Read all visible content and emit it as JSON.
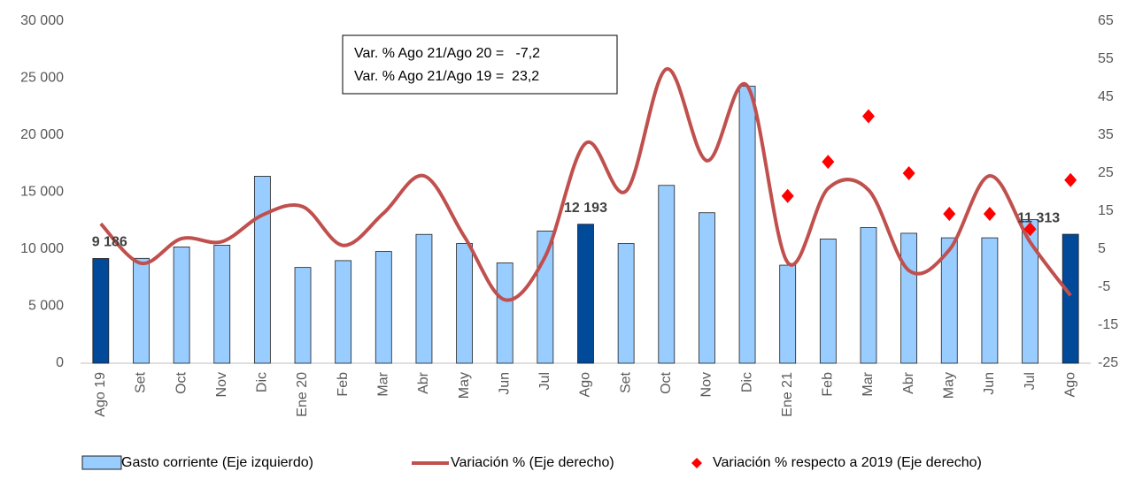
{
  "chart_data": {
    "type": "bar",
    "categories": [
      "Ago 19",
      "Set",
      "Oct",
      "Nov",
      "Dic",
      "Ene 20",
      "Feb",
      "Mar",
      "Abr",
      "May",
      "Jun",
      "Jul",
      "Ago",
      "Set",
      "Oct",
      "Nov",
      "Dic",
      "Ene 21",
      "Feb",
      "Mar",
      "Abr",
      "May",
      "Jun",
      "Jul",
      "Ago"
    ],
    "series": [
      {
        "name": "Gasto corriente (Eje izquierdo)",
        "type": "bar",
        "color": "#99ccff",
        "colors": [
          "#004a99",
          "#99ccff",
          "#99ccff",
          "#99ccff",
          "#99ccff",
          "#99ccff",
          "#99ccff",
          "#99ccff",
          "#99ccff",
          "#99ccff",
          "#99ccff",
          "#99ccff",
          "#004a99",
          "#99ccff",
          "#99ccff",
          "#99ccff",
          "#99ccff",
          "#99ccff",
          "#99ccff",
          "#99ccff",
          "#99ccff",
          "#99ccff",
          "#99ccff",
          "#99ccff",
          "#004a99"
        ],
        "values": [
          9186,
          9200,
          10200,
          10350,
          16400,
          8400,
          9000,
          9800,
          11300,
          10500,
          8800,
          11600,
          12193,
          10500,
          15600,
          13200,
          24300,
          8600,
          10900,
          11900,
          11400,
          11000,
          11000,
          12600,
          11313
        ],
        "value_labels": [
          "9 186",
          null,
          null,
          null,
          null,
          null,
          null,
          null,
          null,
          null,
          null,
          null,
          "12 193",
          null,
          null,
          null,
          null,
          null,
          null,
          null,
          null,
          null,
          null,
          null,
          "11 313"
        ]
      },
      {
        "name": "Variación % (Eje derecho)",
        "type": "line",
        "axis": "y2",
        "color": "#c0504d",
        "values": [
          11.7,
          1.3,
          7.8,
          7,
          14,
          16.2,
          6,
          14.5,
          24.3,
          8.3,
          -8.3,
          3.1,
          32.9,
          20.3,
          52.4,
          28.3,
          48,
          1.5,
          21,
          20.6,
          -0.6,
          4.8,
          24.3,
          6.9,
          -7.2
        ]
      },
      {
        "name": "Variación % respecto a 2019 (Eje derecho)",
        "type": "scatter",
        "axis": "y2",
        "color": "#ff0000",
        "values": [
          null,
          null,
          null,
          null,
          null,
          null,
          null,
          null,
          null,
          null,
          null,
          null,
          null,
          null,
          null,
          null,
          null,
          19,
          28,
          40,
          25,
          14.3,
          14.3,
          10.3,
          23.2
        ]
      }
    ],
    "ylim": [
      0,
      30000
    ],
    "yticks": [
      {
        "value": 0,
        "label": "0"
      },
      {
        "value": 5000,
        "label": "5 000"
      },
      {
        "value": 10000,
        "label": "10 000"
      },
      {
        "value": 15000,
        "label": "15 000"
      },
      {
        "value": 20000,
        "label": "20 000"
      },
      {
        "value": 25000,
        "label": "25 000"
      },
      {
        "value": 30000,
        "label": "30 000"
      }
    ],
    "y2lim": [
      -25,
      65
    ],
    "y2ticks": [
      -25,
      -15,
      -5,
      5,
      15,
      25,
      35,
      45,
      55,
      65
    ],
    "annotations": [
      "Var. % Ago 21/Ago 20 =   -7,2",
      "Var. % Ago 21/Ago 19 =  23,2"
    ],
    "legend": "bottom"
  }
}
